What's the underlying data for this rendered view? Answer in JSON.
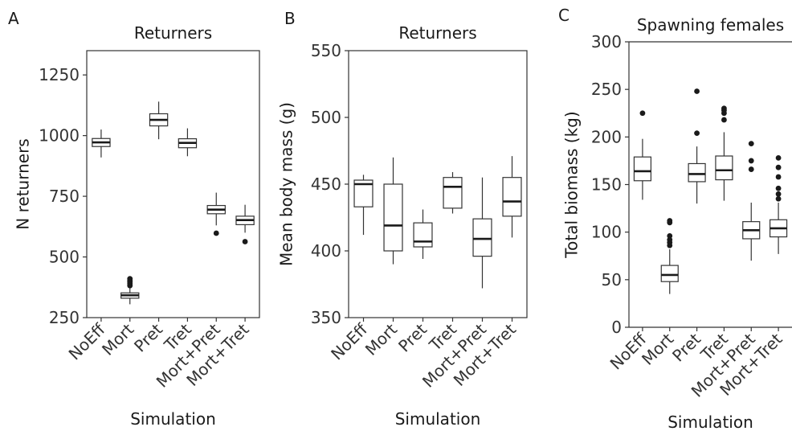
{
  "chart_data": [
    {
      "panel": "A",
      "type": "boxplot",
      "title": "Returners",
      "xlabel": "Simulation",
      "ylabel": "N returners",
      "ylim": [
        250,
        1350
      ],
      "yticks": [
        250,
        500,
        750,
        1000,
        1250
      ],
      "framed": true,
      "grid": false,
      "categories": [
        "NoEff",
        "Mort",
        "Pret",
        "Tret",
        "Mort+Pret",
        "Mort+Tret"
      ],
      "boxes": [
        {
          "category": "NoEff",
          "lower": 910,
          "q1": 955,
          "median": 972,
          "q3": 988,
          "upper": 1025,
          "outliers": []
        },
        {
          "category": "Mort",
          "lower": 305,
          "q1": 330,
          "median": 342,
          "q3": 352,
          "upper": 375,
          "outliers": [
            382,
            390,
            397,
            403,
            410
          ]
        },
        {
          "category": "Pret",
          "lower": 985,
          "q1": 1040,
          "median": 1065,
          "q3": 1090,
          "upper": 1140,
          "outliers": []
        },
        {
          "category": "Tret",
          "lower": 915,
          "q1": 950,
          "median": 970,
          "q3": 987,
          "upper": 1030,
          "outliers": []
        },
        {
          "category": "Mort+Pret",
          "lower": 630,
          "q1": 678,
          "median": 695,
          "q3": 712,
          "upper": 765,
          "outliers": [
            598
          ]
        },
        {
          "category": "Mort+Tret",
          "lower": 600,
          "q1": 633,
          "median": 652,
          "q3": 668,
          "upper": 715,
          "outliers": [
            563
          ]
        }
      ]
    },
    {
      "panel": "B",
      "type": "boxplot",
      "title": "Returners",
      "xlabel": "Simulation",
      "ylabel": "Mean body mass (g)",
      "ylim": [
        350,
        550
      ],
      "yticks": [
        350,
        400,
        450,
        500,
        550
      ],
      "framed": true,
      "grid": false,
      "categories": [
        "NoEff",
        "Mort",
        "Pret",
        "Tret",
        "Mort+Pret",
        "Mort+Tret"
      ],
      "boxes": [
        {
          "category": "NoEff",
          "lower": 412,
          "q1": 433,
          "median": 450,
          "q3": 453,
          "upper": 457,
          "outliers": []
        },
        {
          "category": "Mort",
          "lower": 390,
          "q1": 400,
          "median": 419,
          "q3": 450,
          "upper": 470,
          "outliers": []
        },
        {
          "category": "Pret",
          "lower": 394,
          "q1": 403,
          "median": 407,
          "q3": 421,
          "upper": 431,
          "outliers": []
        },
        {
          "category": "Tret",
          "lower": 428,
          "q1": 432,
          "median": 448,
          "q3": 455,
          "upper": 459,
          "outliers": []
        },
        {
          "category": "Mort+Pret",
          "lower": 372,
          "q1": 396,
          "median": 409,
          "q3": 424,
          "upper": 455,
          "outliers": []
        },
        {
          "category": "Mort+Tret",
          "lower": 410,
          "q1": 426,
          "median": 437,
          "q3": 455,
          "upper": 471,
          "outliers": []
        }
      ]
    },
    {
      "panel": "C",
      "type": "boxplot",
      "title": "Spawning females",
      "xlabel": "Simulation",
      "ylabel": "Total biomass (kg)",
      "ylim": [
        0,
        300
      ],
      "yticks": [
        0,
        50,
        100,
        150,
        200,
        250,
        300
      ],
      "framed": false,
      "grid": false,
      "categories": [
        "NoEff",
        "Mort",
        "Pret",
        "Tret",
        "Mort+Pret",
        "Mort+Tret"
      ],
      "boxes": [
        {
          "category": "NoEff",
          "lower": 134,
          "q1": 154,
          "median": 164,
          "q3": 179,
          "upper": 198,
          "outliers": [
            225
          ]
        },
        {
          "category": "Mort",
          "lower": 35,
          "q1": 48,
          "median": 55,
          "q3": 65,
          "upper": 82,
          "outliers": [
            86,
            89,
            92,
            96,
            110,
            112
          ]
        },
        {
          "category": "Pret",
          "lower": 130,
          "q1": 153,
          "median": 161,
          "q3": 172,
          "upper": 190,
          "outliers": [
            204,
            248
          ]
        },
        {
          "category": "Tret",
          "lower": 133,
          "q1": 155,
          "median": 165,
          "q3": 180,
          "upper": 205,
          "outliers": [
            218,
            225,
            228,
            230
          ]
        },
        {
          "category": "Mort+Pret",
          "lower": 70,
          "q1": 93,
          "median": 102,
          "q3": 111,
          "upper": 131,
          "outliers": [
            166,
            175,
            193
          ]
        },
        {
          "category": "Mort+Tret",
          "lower": 77,
          "q1": 95,
          "median": 104,
          "q3": 113,
          "upper": 131,
          "outliers": [
            135,
            140,
            146,
            158,
            168,
            178
          ]
        }
      ]
    }
  ]
}
